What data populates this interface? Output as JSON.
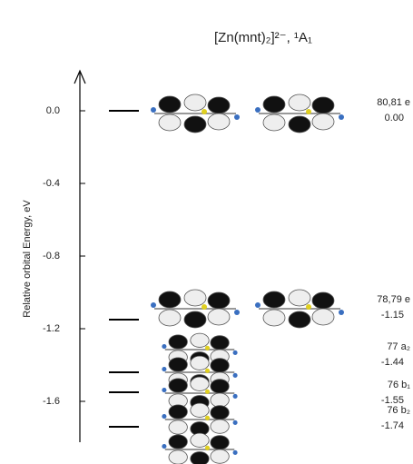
{
  "chart_data": {
    "type": "energy-levels",
    "title": "[Zn(mnt)₂]²⁻, ¹A₁",
    "y_label": "Relative orbital Energy, eV",
    "categories": [
      "80,81 e",
      "78,79 e",
      "77 a₂",
      "76 b₁",
      "76 b₂"
    ],
    "values": [
      0.0,
      -1.15,
      -1.44,
      -1.55,
      -1.74
    ],
    "value_labels": [
      "0.00",
      "-1.15",
      "-1.44",
      "-1.55",
      "-1.74"
    ],
    "color": "#000000",
    "ylim": [
      -1.8,
      0.2
    ],
    "yticks": [
      {
        "value": 0,
        "label": "0.0"
      },
      -0.4,
      -0.8,
      -1.2,
      -1.6
    ]
  }
}
